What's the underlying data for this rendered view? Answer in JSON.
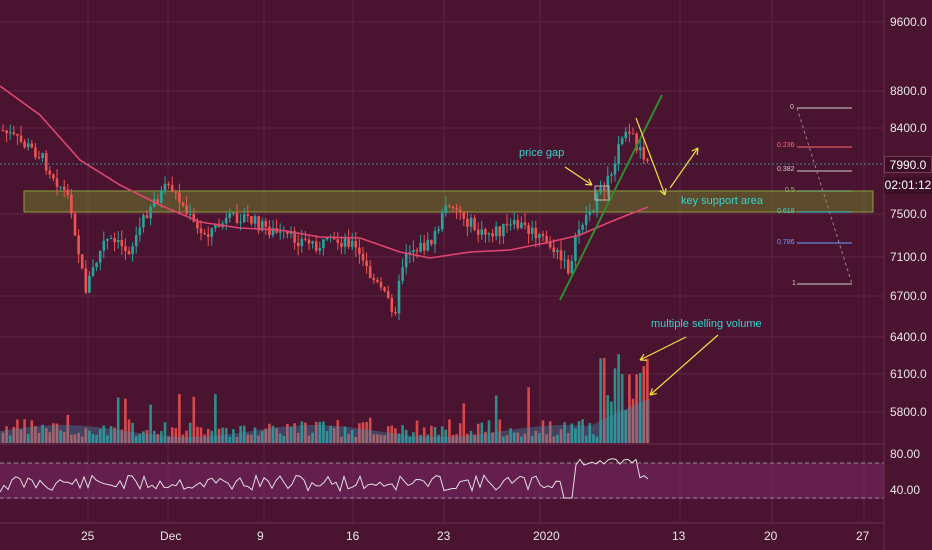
{
  "price_axis": {
    "ticks": [
      "9600.0",
      "8800.0",
      "8400.0",
      "7500.0",
      "7100.0",
      "6700.0",
      "6400.0",
      "6100.0",
      "5800.0"
    ],
    "current_price": "7990.0",
    "countdown": "02:01:12"
  },
  "rsi_axis": {
    "ticks": [
      "80.00",
      "40.00"
    ]
  },
  "time_axis": {
    "ticks": [
      "25",
      "Dec",
      "9",
      "16",
      "23",
      "2020",
      "13",
      "20",
      "27"
    ]
  },
  "annotations": {
    "price_gap": "price gap",
    "key_support": "key support area",
    "selling_volume": "multiple selling volume"
  },
  "fib_levels": [
    "0",
    "0.236",
    "0.382",
    "0.5",
    "0.618",
    "0.786",
    "1"
  ],
  "colors": {
    "background": "#4a1330",
    "up_candle": "#26a69a",
    "down_candle": "#ef5350",
    "moving_average": "#e0456f",
    "support_zone": "#6b7a2a",
    "trendline": "#2e8b2e",
    "arrows": "#f0e040",
    "annotation_text": "#35d4d0",
    "rsi_line": "#e0e0e0"
  }
}
